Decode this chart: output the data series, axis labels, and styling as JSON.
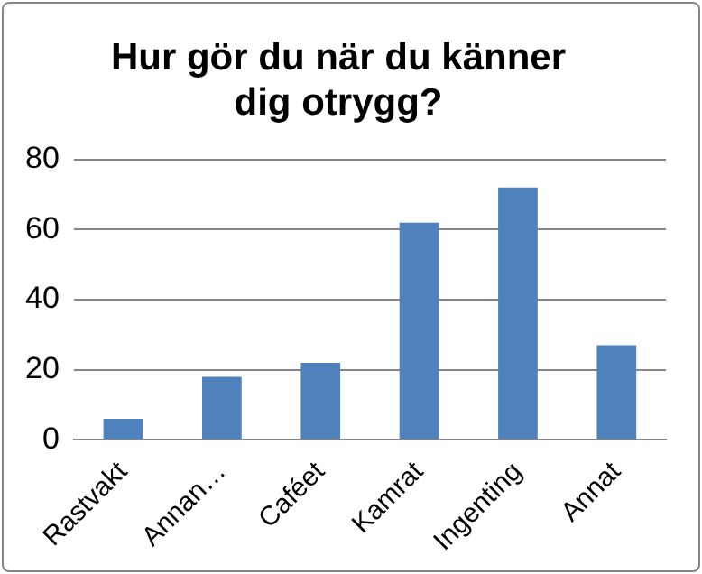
{
  "chart_data": {
    "type": "bar",
    "title": "Hur gör du när du känner\ndig otrygg?",
    "categories": [
      "Rastvakt",
      "Annan…",
      "Caféet",
      "Kamrat",
      "Ingenting",
      "Annat"
    ],
    "values": [
      6,
      18,
      22,
      62,
      72,
      27
    ],
    "color": "#4f81bd",
    "ylim": [
      0,
      80
    ],
    "yticks": [
      0,
      20,
      40,
      60,
      80
    ],
    "grid": "y"
  }
}
